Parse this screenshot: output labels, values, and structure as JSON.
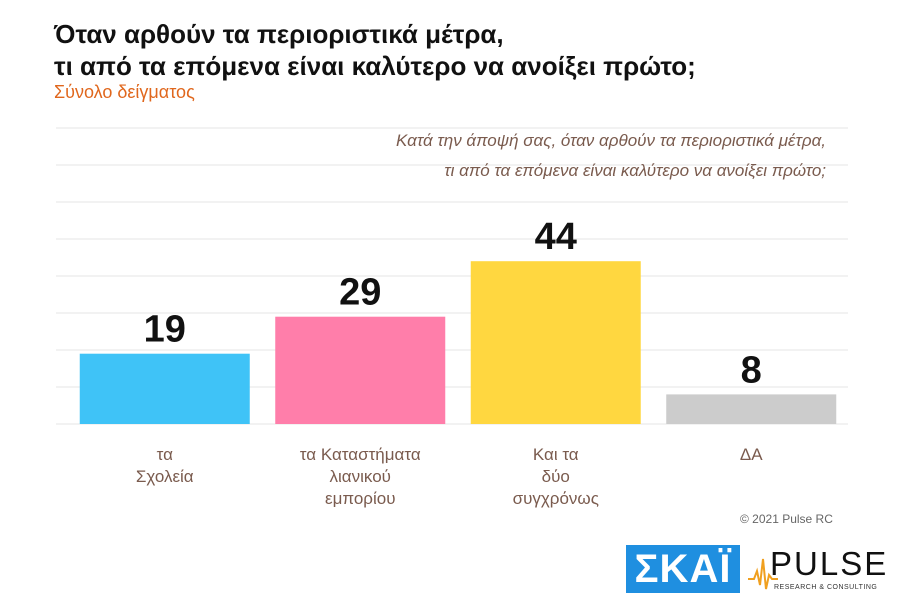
{
  "header": {
    "title_line1": "Όταν αρθούν τα περιοριστικά μέτρα,",
    "title_line2": "τι από τα επόμενα είναι καλύτερο να ανοίξει πρώτο;",
    "subtitle": "Σύνολο δείγματος"
  },
  "question": {
    "line1": "Κατά την άποψή σας, όταν αρθούν τα περιοριστικά μέτρα,",
    "line2": "τι από τα επόμενα είναι καλύτερο να ανοίξει πρώτο;"
  },
  "chart_data": {
    "type": "bar",
    "categories": [
      [
        "τα",
        "Σχολεία"
      ],
      [
        "τα Καταστήματα",
        "λιανικού",
        "εμπορίου"
      ],
      [
        "Και τα",
        "δύο",
        "συγχρόνως"
      ],
      [
        "ΔΑ"
      ]
    ],
    "values": [
      19,
      29,
      44,
      8
    ],
    "colors": [
      "#3fc3f7",
      "#ff7eaa",
      "#ffd740",
      "#cccccc"
    ],
    "ylim": [
      0,
      80
    ],
    "grid": true,
    "label_color": "#7a5b4e"
  },
  "footer": {
    "copyright": "© 2021 Pulse RC",
    "logo_skai": "ΣΚΑΪ",
    "logo_pulse": "PULSE",
    "logo_pulse_sub": "RESEARCH & CONSULTING"
  }
}
